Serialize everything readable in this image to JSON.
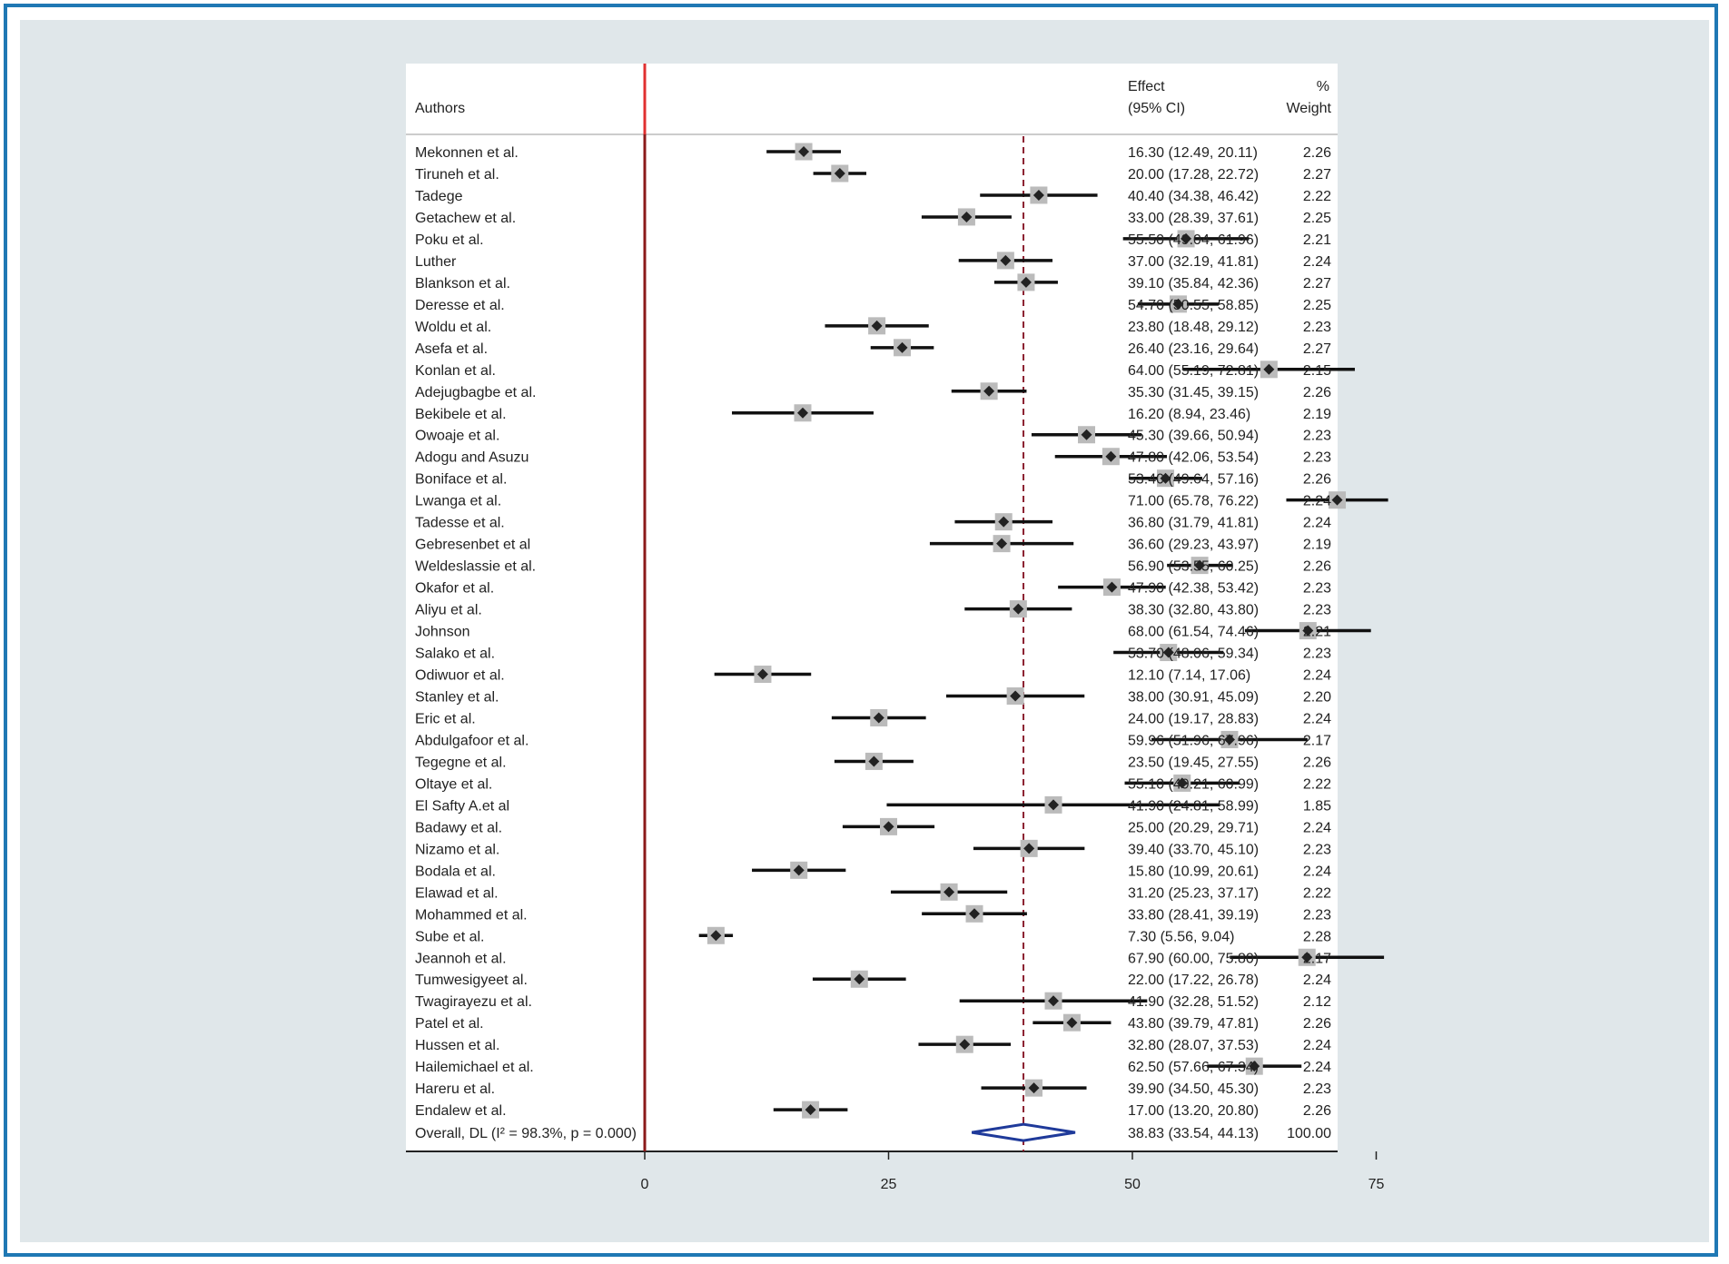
{
  "header": {
    "authors_label": "Authors",
    "effect_label_1": "Effect",
    "effect_label_2": "(95% CI)",
    "weight_label_1": "%",
    "weight_label_2": "Weight"
  },
  "chart_data": {
    "type": "forest",
    "x_ticks": [
      0,
      25,
      50,
      75
    ],
    "xlim": [
      0,
      75
    ],
    "null_line": 0,
    "studies": [
      {
        "author": "Mekonnen et al.",
        "effect": 16.3,
        "lower": 12.49,
        "upper": 20.11,
        "ci_text": "16.30 (12.49, 20.11)",
        "weight": "2.26"
      },
      {
        "author": "Tiruneh et al.",
        "effect": 20.0,
        "lower": 17.28,
        "upper": 22.72,
        "ci_text": "20.00 (17.28, 22.72)",
        "weight": "2.27"
      },
      {
        "author": "Tadege",
        "effect": 40.4,
        "lower": 34.38,
        "upper": 46.42,
        "ci_text": "40.40 (34.38, 46.42)",
        "weight": "2.22"
      },
      {
        "author": "Getachew et al.",
        "effect": 33.0,
        "lower": 28.39,
        "upper": 37.61,
        "ci_text": "33.00 (28.39, 37.61)",
        "weight": "2.25"
      },
      {
        "author": "Poku et al.",
        "effect": 55.5,
        "lower": 49.04,
        "upper": 61.96,
        "ci_text": "55.50 (49.04, 61.96)",
        "weight": "2.21"
      },
      {
        "author": "Luther",
        "effect": 37.0,
        "lower": 32.19,
        "upper": 41.81,
        "ci_text": "37.00 (32.19, 41.81)",
        "weight": "2.24"
      },
      {
        "author": "Blankson et al.",
        "effect": 39.1,
        "lower": 35.84,
        "upper": 42.36,
        "ci_text": "39.10 (35.84, 42.36)",
        "weight": "2.27"
      },
      {
        "author": "Deresse et al.",
        "effect": 54.7,
        "lower": 50.55,
        "upper": 58.85,
        "ci_text": "54.70 (50.55, 58.85)",
        "weight": "2.25"
      },
      {
        "author": "Woldu et al.",
        "effect": 23.8,
        "lower": 18.48,
        "upper": 29.12,
        "ci_text": "23.80 (18.48, 29.12)",
        "weight": "2.23"
      },
      {
        "author": "Asefa et al.",
        "effect": 26.4,
        "lower": 23.16,
        "upper": 29.64,
        "ci_text": "26.40 (23.16, 29.64)",
        "weight": "2.27"
      },
      {
        "author": "Konlan et al.",
        "effect": 64.0,
        "lower": 55.19,
        "upper": 72.81,
        "ci_text": "64.00 (55.19, 72.81)",
        "weight": "2.15"
      },
      {
        "author": "Adejugbagbe et al.",
        "effect": 35.3,
        "lower": 31.45,
        "upper": 39.15,
        "ci_text": "35.30 (31.45, 39.15)",
        "weight": "2.26"
      },
      {
        "author": "Bekibele et al.",
        "effect": 16.2,
        "lower": 8.94,
        "upper": 23.46,
        "ci_text": "16.20 (8.94, 23.46)",
        "weight": "2.19"
      },
      {
        "author": "Owoaje et al.",
        "effect": 45.3,
        "lower": 39.66,
        "upper": 50.94,
        "ci_text": "45.30 (39.66, 50.94)",
        "weight": "2.23"
      },
      {
        "author": "Adogu and Asuzu",
        "effect": 47.8,
        "lower": 42.06,
        "upper": 53.54,
        "ci_text": "47.80 (42.06, 53.54)",
        "weight": "2.23"
      },
      {
        "author": "Boniface et al.",
        "effect": 53.4,
        "lower": 49.64,
        "upper": 57.16,
        "ci_text": "53.40 (49.64, 57.16)",
        "weight": "2.26"
      },
      {
        "author": "Lwanga et al.",
        "effect": 71.0,
        "lower": 65.78,
        "upper": 76.22,
        "ci_text": "71.00 (65.78, 76.22)",
        "weight": "2.24"
      },
      {
        "author": "Tadesse et al.",
        "effect": 36.8,
        "lower": 31.79,
        "upper": 41.81,
        "ci_text": "36.80 (31.79, 41.81)",
        "weight": "2.24"
      },
      {
        "author": "Gebresenbet et al",
        "effect": 36.6,
        "lower": 29.23,
        "upper": 43.97,
        "ci_text": "36.60 (29.23, 43.97)",
        "weight": "2.19"
      },
      {
        "author": "Weldeslassie et al.",
        "effect": 56.9,
        "lower": 53.55,
        "upper": 60.25,
        "ci_text": "56.90 (53.55, 60.25)",
        "weight": "2.26"
      },
      {
        "author": "Okafor et al.",
        "effect": 47.9,
        "lower": 42.38,
        "upper": 53.42,
        "ci_text": "47.90 (42.38, 53.42)",
        "weight": "2.23"
      },
      {
        "author": "Aliyu et al.",
        "effect": 38.3,
        "lower": 32.8,
        "upper": 43.8,
        "ci_text": "38.30 (32.80, 43.80)",
        "weight": "2.23"
      },
      {
        "author": "Johnson",
        "effect": 68.0,
        "lower": 61.54,
        "upper": 74.46,
        "ci_text": "68.00 (61.54, 74.46)",
        "weight": "2.21"
      },
      {
        "author": "Salako et al.",
        "effect": 53.7,
        "lower": 48.06,
        "upper": 59.34,
        "ci_text": "53.70 (48.06, 59.34)",
        "weight": "2.23"
      },
      {
        "author": "Odiwuor et al.",
        "effect": 12.1,
        "lower": 7.14,
        "upper": 17.06,
        "ci_text": "12.10 (7.14, 17.06)",
        "weight": "2.24"
      },
      {
        "author": "Stanley et al.",
        "effect": 38.0,
        "lower": 30.91,
        "upper": 45.09,
        "ci_text": "38.00 (30.91, 45.09)",
        "weight": "2.20"
      },
      {
        "author": "Eric  et  al.",
        "effect": 24.0,
        "lower": 19.17,
        "upper": 28.83,
        "ci_text": "24.00 (19.17, 28.83)",
        "weight": "2.24"
      },
      {
        "author": "Abdulgafoor et al.",
        "effect": 59.96,
        "lower": 51.96,
        "upper": 67.96,
        "ci_text": "59.96 (51.96, 67.96)",
        "weight": "2.17"
      },
      {
        "author": "Tegegne et al.",
        "effect": 23.5,
        "lower": 19.45,
        "upper": 27.55,
        "ci_text": "23.50 (19.45, 27.55)",
        "weight": "2.26"
      },
      {
        "author": "Oltaye et al.",
        "effect": 55.1,
        "lower": 49.21,
        "upper": 60.99,
        "ci_text": "55.10 (49.21, 60.99)",
        "weight": "2.22"
      },
      {
        "author": "El Safty A.et al",
        "effect": 41.9,
        "lower": 24.81,
        "upper": 58.99,
        "ci_text": "41.90 (24.81, 58.99)",
        "weight": "1.85"
      },
      {
        "author": "Badawy et al.",
        "effect": 25.0,
        "lower": 20.29,
        "upper": 29.71,
        "ci_text": "25.00 (20.29, 29.71)",
        "weight": "2.24"
      },
      {
        "author": "Nizamo et al.",
        "effect": 39.4,
        "lower": 33.7,
        "upper": 45.1,
        "ci_text": "39.40 (33.70, 45.10)",
        "weight": "2.23"
      },
      {
        "author": "Bodala et al.",
        "effect": 15.8,
        "lower": 10.99,
        "upper": 20.61,
        "ci_text": "15.80 (10.99, 20.61)",
        "weight": "2.24"
      },
      {
        "author": "Elawad et al.",
        "effect": 31.2,
        "lower": 25.23,
        "upper": 37.17,
        "ci_text": "31.20 (25.23, 37.17)",
        "weight": "2.22"
      },
      {
        "author": "Mohammed et al.",
        "effect": 33.8,
        "lower": 28.41,
        "upper": 39.19,
        "ci_text": "33.80 (28.41, 39.19)",
        "weight": "2.23"
      },
      {
        "author": "Sube et al.",
        "effect": 7.3,
        "lower": 5.56,
        "upper": 9.04,
        "ci_text": "7.30 (5.56, 9.04)",
        "weight": "2.28"
      },
      {
        "author": "Jeannoh et al.",
        "effect": 67.9,
        "lower": 60.0,
        "upper": 75.8,
        "ci_text": "67.90 (60.00, 75.80)",
        "weight": "2.17"
      },
      {
        "author": "Tumwesigyeet al.",
        "effect": 22.0,
        "lower": 17.22,
        "upper": 26.78,
        "ci_text": "22.00 (17.22, 26.78)",
        "weight": "2.24"
      },
      {
        "author": "Twagirayezu et al.",
        "effect": 41.9,
        "lower": 32.28,
        "upper": 51.52,
        "ci_text": "41.90 (32.28, 51.52)",
        "weight": "2.12"
      },
      {
        "author": "Patel et al.",
        "effect": 43.8,
        "lower": 39.79,
        "upper": 47.81,
        "ci_text": "43.80 (39.79, 47.81)",
        "weight": "2.26"
      },
      {
        "author": "Hussen et al.",
        "effect": 32.8,
        "lower": 28.07,
        "upper": 37.53,
        "ci_text": "32.80 (28.07, 37.53)",
        "weight": "2.24"
      },
      {
        "author": "Hailemichael et al.",
        "effect": 62.5,
        "lower": 57.66,
        "upper": 67.34,
        "ci_text": "62.50 (57.66, 67.34)",
        "weight": "2.24"
      },
      {
        "author": "Hareru et al.",
        "effect": 39.9,
        "lower": 34.5,
        "upper": 45.3,
        "ci_text": "39.90 (34.50, 45.30)",
        "weight": "2.23"
      },
      {
        "author": "Endalew et al.",
        "effect": 17.0,
        "lower": 13.2,
        "upper": 20.8,
        "ci_text": "17.00 (13.20, 20.80)",
        "weight": "2.26"
      }
    ],
    "overall": {
      "label": "Overall, DL (I² = 98.3%, p = 0.000)",
      "effect": 38.83,
      "lower": 33.54,
      "upper": 44.13,
      "ci_text": "38.83 (33.54, 44.13)",
      "weight": "100.00"
    },
    "colors": {
      "null_line": "#8b1a1a",
      "header_null_line": "#e03030",
      "overall_line": "#8b2030",
      "diamond": "#1f3a9a",
      "point": "#222222",
      "box": "#bbbbbb",
      "ci": "#111111"
    }
  }
}
